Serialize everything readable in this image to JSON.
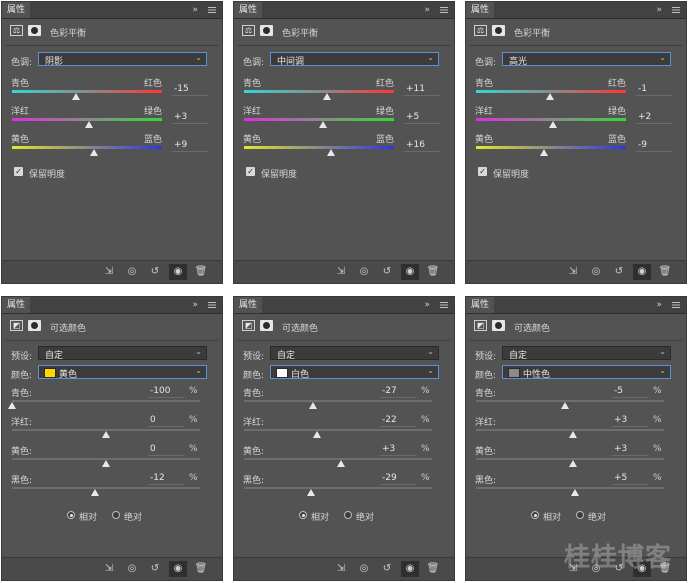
{
  "panel_tab": "属性",
  "collapse_glyph": "»",
  "footer_icons": [
    "clip-to-layer-icon",
    "view-previous-icon",
    "reset-icon",
    "visibility-eye-icon",
    "trash-icon"
  ],
  "color_balance_panels": [
    {
      "title": "色彩平衡",
      "tone_label": "色调:",
      "tone_value": "阴影",
      "sliders": [
        {
          "left": "青色",
          "right": "红色",
          "value": "-15",
          "amount": -15,
          "colors": [
            "#34d6d6",
            "#ff3535"
          ]
        },
        {
          "left": "洋红",
          "right": "绿色",
          "value": "+3",
          "amount": 3,
          "colors": [
            "#e02de0",
            "#35d935"
          ]
        },
        {
          "left": "黄色",
          "right": "蓝色",
          "value": "+9",
          "amount": 9,
          "colors": [
            "#e6e62e",
            "#2e35e6"
          ]
        }
      ],
      "preserve_label": "保留明度",
      "preserve_checked": true
    },
    {
      "title": "色彩平衡",
      "tone_label": "色调:",
      "tone_value": "中间调",
      "sliders": [
        {
          "left": "青色",
          "right": "红色",
          "value": "+11",
          "amount": 11,
          "colors": [
            "#34d6d6",
            "#ff3535"
          ]
        },
        {
          "left": "洋红",
          "right": "绿色",
          "value": "+5",
          "amount": 5,
          "colors": [
            "#e02de0",
            "#35d935"
          ]
        },
        {
          "left": "黄色",
          "right": "蓝色",
          "value": "+16",
          "amount": 16,
          "colors": [
            "#e6e62e",
            "#2e35e6"
          ]
        }
      ],
      "preserve_label": "保留明度",
      "preserve_checked": true
    },
    {
      "title": "色彩平衡",
      "tone_label": "色调:",
      "tone_value": "高光",
      "sliders": [
        {
          "left": "青色",
          "right": "红色",
          "value": "-1",
          "amount": -1,
          "colors": [
            "#34d6d6",
            "#ff3535"
          ]
        },
        {
          "left": "洋红",
          "right": "绿色",
          "value": "+2",
          "amount": 2,
          "colors": [
            "#e02de0",
            "#35d935"
          ]
        },
        {
          "left": "黄色",
          "right": "蓝色",
          "value": "-9",
          "amount": -9,
          "colors": [
            "#e6e62e",
            "#2e35e6"
          ]
        }
      ],
      "preserve_label": "保留明度",
      "preserve_checked": true
    }
  ],
  "selective_color_panels": [
    {
      "title": "可选颜色",
      "preset_label": "预设:",
      "preset_value": "自定",
      "color_label": "颜色:",
      "color_value": "黄色",
      "swatch": "#ffd700",
      "sliders": [
        {
          "label": "青色:",
          "value": "-100",
          "amount": -100
        },
        {
          "label": "洋红:",
          "value": "0",
          "amount": 0
        },
        {
          "label": "黄色:",
          "value": "0",
          "amount": 0
        },
        {
          "label": "黑色:",
          "value": "-12",
          "amount": -12
        }
      ],
      "percent": "%",
      "relative_label": "相对",
      "absolute_label": "绝对",
      "mode": "relative"
    },
    {
      "title": "可选颜色",
      "preset_label": "预设:",
      "preset_value": "自定",
      "color_label": "颜色:",
      "color_value": "白色",
      "swatch": "#ffffff",
      "sliders": [
        {
          "label": "青色:",
          "value": "-27",
          "amount": -27
        },
        {
          "label": "洋红:",
          "value": "-22",
          "amount": -22
        },
        {
          "label": "黄色:",
          "value": "+3",
          "amount": 3
        },
        {
          "label": "黑色:",
          "value": "-29",
          "amount": -29
        }
      ],
      "percent": "%",
      "relative_label": "相对",
      "absolute_label": "绝对",
      "mode": "relative"
    },
    {
      "title": "可选颜色",
      "preset_label": "预设:",
      "preset_value": "自定",
      "color_label": "颜色:",
      "color_value": "中性色",
      "swatch": "#8a8a8a",
      "sliders": [
        {
          "label": "青色:",
          "value": "-5",
          "amount": -5
        },
        {
          "label": "洋红:",
          "value": "+3",
          "amount": 3
        },
        {
          "label": "黄色:",
          "value": "+3",
          "amount": 3
        },
        {
          "label": "黑色:",
          "value": "+5",
          "amount": 5
        }
      ],
      "percent": "%",
      "relative_label": "相对",
      "absolute_label": "绝对",
      "mode": "relative"
    }
  ],
  "watermark": "桂桂博客"
}
